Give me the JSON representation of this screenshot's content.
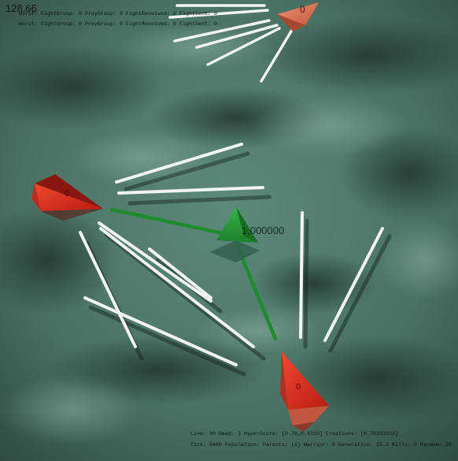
{
  "hud": {
    "timer": "128.66",
    "status_line_1": "Worst: FightGroup: 0 PreyGroup: 0 FightReceived: 0 FightSent: 0",
    "status_line_2": "Worst: FightGroup: 0 PreyGroup: 0 FightReceived: 0 FightSent: 0",
    "info_line_1": "Live: 30 Dead: 3 HyperScore: [0.79,0.4333] Creations: [0.78333333]",
    "info_line_2": "Tick: 8400 Population: Parents: (1) Warrior: 0 Generation: 15.3 Kills: 0 Random: 20"
  },
  "agents": {
    "top_label": "0",
    "left_label": "0",
    "bottom_label": "0"
  },
  "target": {
    "value": "1,000000"
  },
  "colors": {
    "ground": "#4f7a6c",
    "agent_red": "#d8301f",
    "agent_orange": "#e3704f",
    "target_green": "#2a9a3a",
    "link_green": "#1e8c2e",
    "sensor_white": "#f2f4f2"
  }
}
